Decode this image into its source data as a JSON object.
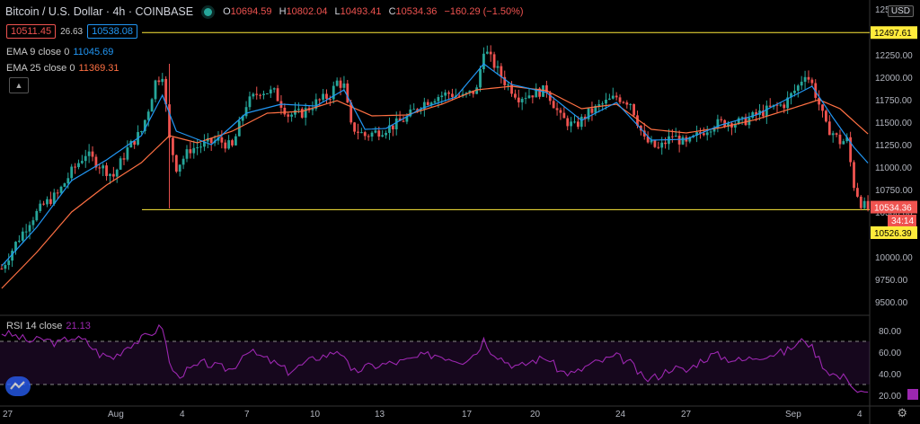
{
  "header": {
    "symbol": "Bitcoin / U.S. Dollar · 4h · COINBASE",
    "open_label": "O",
    "open": "10694.59",
    "high_label": "H",
    "high": "10802.04",
    "low_label": "L",
    "low": "10493.41",
    "close_label": "C",
    "close": "10534.36",
    "change": "−160.29 (−1.50%)",
    "bid": "10511.45",
    "spread": "26.63",
    "ask": "10538.08"
  },
  "indicators": {
    "ema9_label": "EMA 9 close 0",
    "ema9_value": "11045.69",
    "ema25_label": "EMA 25 close 0",
    "ema25_value": "11369.31",
    "rsi_label": "RSI 14 close",
    "rsi_value": "21.13"
  },
  "currency_badge": "USD",
  "colors": {
    "up": "#26a69a",
    "down": "#ef5350",
    "ema9": "#2196f3",
    "ema25": "#ff7043",
    "rsi": "#9c27b0",
    "level": "#ffeb3b",
    "grid": "#1f1f1f",
    "background": "#000000"
  },
  "icons": [
    "live-dot-icon",
    "collapse-chevron-icon",
    "tradingview-logo-icon",
    "settings-gear-icon"
  ],
  "chart_data": [
    {
      "type": "candlestick",
      "title": "Bitcoin / U.S. Dollar · 4h · COINBASE",
      "x_tick_labels": [
        "27",
        "Aug",
        "4",
        "7",
        "10",
        "13",
        "17",
        "20",
        "24",
        "27",
        "Sep",
        "4"
      ],
      "y_tick_labels": [
        "12500.00",
        "12250.00",
        "12000.00",
        "11750.00",
        "11500.00",
        "11250.00",
        "11000.00",
        "10750.00",
        "10500.00",
        "10250.00",
        "10000.00",
        "9750.00",
        "9500.00"
      ],
      "ylim": [
        9400,
        12700
      ],
      "grid": false,
      "axis_labels": {
        "high_level": "12497.61",
        "last_price": "10534.36",
        "countdown": "34:14",
        "low_level": "10526.39"
      },
      "horizontal_levels": [
        12497.61,
        10526.39
      ],
      "last_price": 10534.36,
      "close_path": [
        [
          0,
          9870
        ],
        [
          4,
          10150
        ],
        [
          8,
          10400
        ],
        [
          12,
          10580
        ],
        [
          16,
          10700
        ],
        [
          20,
          10950
        ],
        [
          24,
          11150
        ],
        [
          28,
          11020
        ],
        [
          32,
          10900
        ],
        [
          36,
          11200
        ],
        [
          40,
          11400
        ],
        [
          42,
          11650
        ],
        [
          44,
          11950
        ],
        [
          46,
          12040
        ],
        [
          48,
          11300
        ],
        [
          50,
          11000
        ],
        [
          54,
          11200
        ],
        [
          58,
          11250
        ],
        [
          62,
          11300
        ],
        [
          66,
          11220
        ],
        [
          70,
          11700
        ],
        [
          74,
          11850
        ],
        [
          78,
          11830
        ],
        [
          82,
          11580
        ],
        [
          86,
          11600
        ],
        [
          90,
          11720
        ],
        [
          94,
          11800
        ],
        [
          96,
          11950
        ],
        [
          98,
          11900
        ],
        [
          100,
          11450
        ],
        [
          104,
          11350
        ],
        [
          108,
          11400
        ],
        [
          112,
          11460
        ],
        [
          116,
          11550
        ],
        [
          120,
          11700
        ],
        [
          124,
          11780
        ],
        [
          128,
          11820
        ],
        [
          132,
          11780
        ],
        [
          136,
          11860
        ],
        [
          138,
          12320
        ],
        [
          140,
          12200
        ],
        [
          144,
          11950
        ],
        [
          148,
          11780
        ],
        [
          152,
          11820
        ],
        [
          156,
          11860
        ],
        [
          160,
          11550
        ],
        [
          164,
          11450
        ],
        [
          168,
          11600
        ],
        [
          172,
          11700
        ],
        [
          176,
          11780
        ],
        [
          180,
          11720
        ],
        [
          184,
          11300
        ],
        [
          188,
          11200
        ],
        [
          192,
          11350
        ],
        [
          196,
          11250
        ],
        [
          200,
          11380
        ],
        [
          204,
          11480
        ],
        [
          208,
          11500
        ],
        [
          212,
          11500
        ],
        [
          216,
          11580
        ],
        [
          220,
          11650
        ],
        [
          224,
          11700
        ],
        [
          228,
          11900
        ],
        [
          230,
          12050
        ],
        [
          232,
          11920
        ],
        [
          234,
          11700
        ],
        [
          236,
          11450
        ],
        [
          238,
          11380
        ],
        [
          240,
          11280
        ],
        [
          242,
          11300
        ],
        [
          244,
          10800
        ],
        [
          246,
          10600
        ],
        [
          248,
          10534
        ]
      ],
      "ema9_path": [
        [
          0,
          9900
        ],
        [
          10,
          10330
        ],
        [
          20,
          10850
        ],
        [
          30,
          11080
        ],
        [
          40,
          11350
        ],
        [
          46,
          11800
        ],
        [
          50,
          11400
        ],
        [
          60,
          11250
        ],
        [
          70,
          11600
        ],
        [
          80,
          11700
        ],
        [
          90,
          11680
        ],
        [
          98,
          11860
        ],
        [
          104,
          11420
        ],
        [
          110,
          11430
        ],
        [
          120,
          11650
        ],
        [
          130,
          11780
        ],
        [
          138,
          12150
        ],
        [
          146,
          11920
        ],
        [
          156,
          11830
        ],
        [
          166,
          11520
        ],
        [
          176,
          11720
        ],
        [
          186,
          11300
        ],
        [
          196,
          11310
        ],
        [
          206,
          11470
        ],
        [
          216,
          11580
        ],
        [
          226,
          11780
        ],
        [
          232,
          11900
        ],
        [
          238,
          11550
        ],
        [
          244,
          11220
        ],
        [
          248,
          11045
        ]
      ],
      "ema25_path": [
        [
          0,
          9650
        ],
        [
          10,
          10050
        ],
        [
          20,
          10500
        ],
        [
          30,
          10800
        ],
        [
          40,
          11050
        ],
        [
          48,
          11350
        ],
        [
          56,
          11270
        ],
        [
          66,
          11400
        ],
        [
          76,
          11600
        ],
        [
          86,
          11620
        ],
        [
          96,
          11740
        ],
        [
          106,
          11570
        ],
        [
          116,
          11580
        ],
        [
          126,
          11700
        ],
        [
          136,
          11860
        ],
        [
          146,
          11900
        ],
        [
          156,
          11850
        ],
        [
          166,
          11650
        ],
        [
          176,
          11700
        ],
        [
          186,
          11420
        ],
        [
          196,
          11380
        ],
        [
          206,
          11440
        ],
        [
          216,
          11530
        ],
        [
          226,
          11650
        ],
        [
          234,
          11750
        ],
        [
          240,
          11650
        ],
        [
          248,
          11369
        ]
      ]
    },
    {
      "type": "line",
      "title": "RSI 14 close",
      "y_tick_labels": [
        "80.00",
        "60.00",
        "40.00",
        "20.00"
      ],
      "ylim": [
        15,
        87
      ],
      "bands": [
        70,
        30
      ],
      "current": 21.13,
      "rsi_path": [
        [
          0,
          78
        ],
        [
          4,
          75
        ],
        [
          8,
          70
        ],
        [
          12,
          72
        ],
        [
          16,
          68
        ],
        [
          20,
          74
        ],
        [
          24,
          70
        ],
        [
          28,
          58
        ],
        [
          32,
          55
        ],
        [
          36,
          66
        ],
        [
          40,
          72
        ],
        [
          44,
          80
        ],
        [
          46,
          84
        ],
        [
          48,
          50
        ],
        [
          50,
          38
        ],
        [
          54,
          44
        ],
        [
          58,
          50
        ],
        [
          62,
          46
        ],
        [
          66,
          44
        ],
        [
          70,
          62
        ],
        [
          74,
          56
        ],
        [
          78,
          50
        ],
        [
          82,
          42
        ],
        [
          86,
          48
        ],
        [
          90,
          55
        ],
        [
          94,
          58
        ],
        [
          96,
          62
        ],
        [
          98,
          58
        ],
        [
          100,
          40
        ],
        [
          104,
          46
        ],
        [
          108,
          48
        ],
        [
          112,
          50
        ],
        [
          116,
          52
        ],
        [
          120,
          56
        ],
        [
          124,
          58
        ],
        [
          128,
          55
        ],
        [
          132,
          52
        ],
        [
          136,
          60
        ],
        [
          138,
          72
        ],
        [
          140,
          62
        ],
        [
          144,
          52
        ],
        [
          148,
          46
        ],
        [
          152,
          52
        ],
        [
          156,
          55
        ],
        [
          160,
          42
        ],
        [
          164,
          40
        ],
        [
          168,
          48
        ],
        [
          172,
          52
        ],
        [
          176,
          56
        ],
        [
          180,
          50
        ],
        [
          184,
          34
        ],
        [
          188,
          38
        ],
        [
          192,
          46
        ],
        [
          196,
          42
        ],
        [
          200,
          52
        ],
        [
          204,
          58
        ],
        [
          208,
          54
        ],
        [
          212,
          52
        ],
        [
          216,
          56
        ],
        [
          220,
          58
        ],
        [
          224,
          60
        ],
        [
          228,
          68
        ],
        [
          230,
          72
        ],
        [
          232,
          64
        ],
        [
          234,
          54
        ],
        [
          236,
          44
        ],
        [
          238,
          40
        ],
        [
          240,
          36
        ],
        [
          242,
          38
        ],
        [
          244,
          26
        ],
        [
          246,
          22
        ],
        [
          248,
          21
        ]
      ]
    }
  ]
}
